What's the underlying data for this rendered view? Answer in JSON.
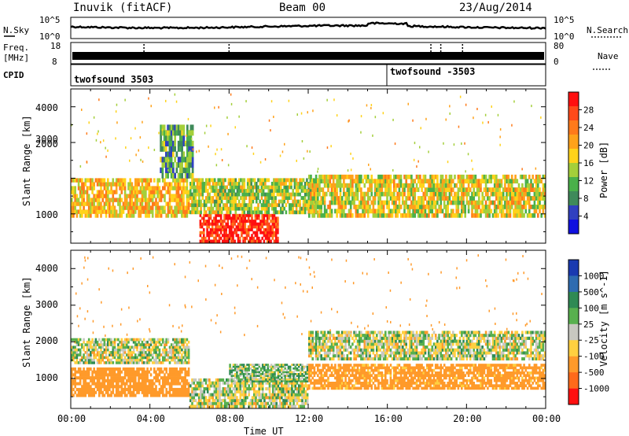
{
  "header": {
    "station": "Inuvik (fitACF)",
    "beam": "Beam 00",
    "date": "23/Aug/2014"
  },
  "nsky": {
    "left_label": "N.Sky",
    "right_label": "N.Search",
    "left_ticks": [
      "10^5",
      "10^0"
    ],
    "right_ticks": [
      "10^5",
      "10^0"
    ]
  },
  "freq": {
    "label_line1": "Freq.",
    "label_line2": "[MHz]",
    "right_label": "Nave",
    "left_ticks": [
      "18",
      "8"
    ],
    "right_ticks": [
      "80",
      "0"
    ]
  },
  "cpid": {
    "label": "CPID",
    "segments": [
      {
        "name": "twofsound 3503",
        "start_hour": 0
      },
      {
        "name": "twofsound -3503",
        "start_hour": 16
      }
    ]
  },
  "time_axis": {
    "label": "Time UT",
    "ticks": [
      "00:00",
      "04:00",
      "08:00",
      "12:00",
      "16:00",
      "20:00",
      "00:00"
    ]
  },
  "range_axis": {
    "label": "Slant Range [km]",
    "ticks": [
      "1000",
      "2000",
      "3000",
      "4000"
    ]
  },
  "power_scale": {
    "title": "Power [dB]",
    "ticks": [
      "4",
      "8",
      "12",
      "16",
      "20",
      "24",
      "28"
    ],
    "colors": [
      "#1010e0",
      "#3040c0",
      "#3f8a5a",
      "#4ab04a",
      "#a4cf3a",
      "#ffd31a",
      "#ffa21a",
      "#ff7a1a",
      "#ff4a1a",
      "#ff1010"
    ]
  },
  "velocity_scale": {
    "title": "Velocity [m s^-1]",
    "ticks": [
      "1000",
      "500",
      "100",
      "25",
      "-25",
      "-100",
      "-500",
      "-1000"
    ],
    "colors": [
      "#1a3ab0",
      "#2e6bb0",
      "#2f8a54",
      "#58b04e",
      "#c8c8c0",
      "#ffd040",
      "#ff9a2a",
      "#ff6a1a",
      "#ff1010"
    ]
  },
  "chart_data": [
    {
      "type": "heatmap",
      "title": "Power [dB]",
      "xlabel": "Time UT",
      "ylabel": "Slant Range [km]",
      "xlim": [
        0,
        24
      ],
      "ylim": [
        180,
        4500
      ],
      "x_ticks": [
        "00:00",
        "04:00",
        "08:00",
        "12:00",
        "16:00",
        "20:00",
        "00:00"
      ],
      "y_ticks": [
        1000,
        2000,
        3000,
        4000
      ],
      "colorbar_ticks": [
        4,
        8,
        12,
        16,
        20,
        24,
        28
      ],
      "regions": [
        {
          "t0": 0.0,
          "t1": 6.0,
          "r0": 900,
          "r1": 2000,
          "value": 20
        },
        {
          "t0": 6.5,
          "t1": 10.5,
          "r0": 200,
          "r1": 1000,
          "value": 30
        },
        {
          "t0": 6.0,
          "t1": 12.5,
          "r0": 1000,
          "r1": 2000,
          "value": 16
        },
        {
          "t0": 12.0,
          "t1": 24.0,
          "r0": 900,
          "r1": 2100,
          "value": 18
        },
        {
          "t0": 4.5,
          "t1": 6.2,
          "r0": 2000,
          "r1": 3500,
          "value": 12
        }
      ]
    },
    {
      "type": "heatmap",
      "title": "Velocity [m s^-1]",
      "xlabel": "Time UT",
      "ylabel": "Slant Range [km]",
      "xlim": [
        0,
        24
      ],
      "ylim": [
        180,
        4500
      ],
      "x_ticks": [
        "00:00",
        "04:00",
        "08:00",
        "12:00",
        "16:00",
        "20:00",
        "00:00"
      ],
      "y_ticks": [
        1000,
        2000,
        3000,
        4000
      ],
      "colorbar_ticks": [
        1000,
        500,
        100,
        25,
        -25,
        -100,
        -500,
        -1000
      ],
      "regions": [
        {
          "t0": 0.0,
          "t1": 6.0,
          "r0": 500,
          "r1": 1300,
          "value": -300
        },
        {
          "t0": 0.0,
          "t1": 6.0,
          "r0": 1400,
          "r1": 2100,
          "value": 0
        },
        {
          "t0": 6.0,
          "t1": 12.0,
          "r0": 200,
          "r1": 1000,
          "value": 0
        },
        {
          "t0": 8.0,
          "t1": 12.0,
          "r0": 900,
          "r1": 1400,
          "value": 60
        },
        {
          "t0": 12.0,
          "t1": 24.0,
          "r0": 700,
          "r1": 1400,
          "value": -200
        },
        {
          "t0": 12.0,
          "t1": 24.0,
          "r0": 1500,
          "r1": 2300,
          "value": 0
        }
      ]
    }
  ]
}
